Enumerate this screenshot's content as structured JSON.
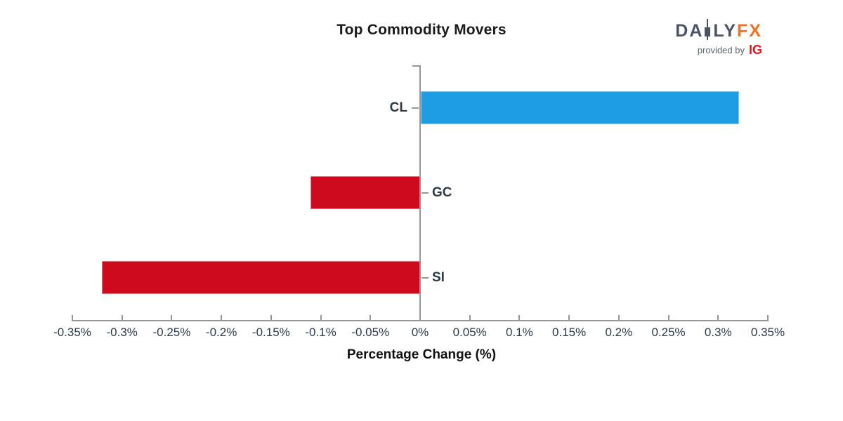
{
  "title": "Top Commodity Movers",
  "logo": {
    "part1": "DA",
    "part2": "LY",
    "part3": "FX",
    "provided_by": "provided by",
    "ig": "IG",
    "slate_color": "#4a5462",
    "orange_color": "#f4711f",
    "ig_red_color": "#e8101c",
    "provided_gray_color": "#5a6570"
  },
  "chart_data": {
    "type": "bar",
    "orientation": "horizontal",
    "title": "Top Commodity Movers",
    "xlabel": "Percentage Change (%)",
    "categories": [
      "CL",
      "GC",
      "SI"
    ],
    "values": [
      0.32,
      -0.11,
      -0.32
    ],
    "value_unit": "%",
    "xlim": [
      -0.35,
      0.35
    ],
    "xtick_values": [
      -0.35,
      -0.3,
      -0.25,
      -0.2,
      -0.15,
      -0.1,
      -0.05,
      0,
      0.05,
      0.1,
      0.15,
      0.2,
      0.25,
      0.3,
      0.35
    ],
    "xtick_labels": [
      "-0.35%",
      "-0.3%",
      "-0.25%",
      "-0.2%",
      "-0.15%",
      "-0.1%",
      "-0.05%",
      "0%",
      "0.05%",
      "0.1%",
      "0.15%",
      "0.2%",
      "0.25%",
      "0.3%",
      "0.35%"
    ],
    "grid": false,
    "legend": false,
    "bar_colors": {
      "positive": "#1e9de4",
      "negative": "#ce0a1f"
    },
    "axis_color": "#979797",
    "tick_label_color": "#2e3a48",
    "category_label_color": "#2e3a48"
  }
}
